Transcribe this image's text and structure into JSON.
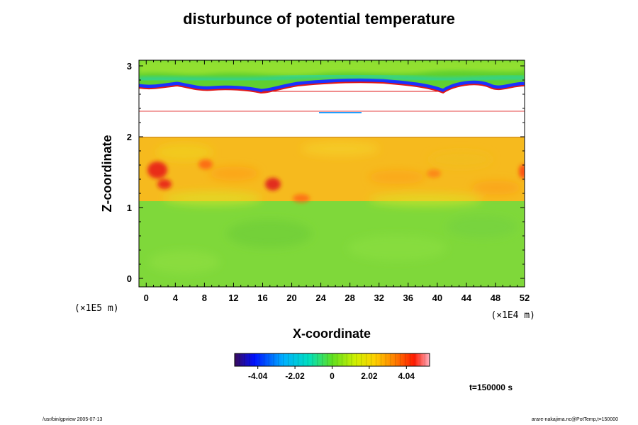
{
  "chart_data": {
    "type": "heatmap",
    "title": "disturbunce of potential temperature",
    "xlabel": "X-coordinate",
    "ylabel": "Z-coordinate",
    "x_unit": "(×1E4 m)",
    "y_unit": "(×1E5 m)",
    "x_ticks": [
      "0",
      "4",
      "8",
      "12",
      "16",
      "20",
      "24",
      "28",
      "32",
      "36",
      "40",
      "44",
      "48",
      "52"
    ],
    "y_ticks": [
      "0",
      "1",
      "2",
      "3"
    ],
    "xlim": [
      -1,
      52
    ],
    "ylim": [
      -0.12,
      3.08
    ],
    "colorbar": {
      "range": [
        -5.3,
        5.3
      ],
      "tick_labels": [
        "-4.04",
        "-2.02",
        "0",
        "2.02",
        "4.04"
      ],
      "tick_values": [
        -4.04,
        -2.02,
        0,
        2.02,
        4.04
      ]
    },
    "time_label": "t=150000 s",
    "regions": [
      {
        "z_range": [
          -0.12,
          1.12
        ],
        "level": "approx 1.0 (green)"
      },
      {
        "z_range": [
          1.12,
          2.0
        ],
        "level": "approx 3.0 (yellow-orange), peaks near 4.5 (red)"
      },
      {
        "z_range": [
          2.0,
          2.72
        ],
        "level": "undefined (white)"
      },
      {
        "z_range": [
          2.72,
          3.08
        ],
        "level": "approx 0 to 1 (green), minima near -3 (blue) at lower edge"
      }
    ]
  },
  "footer": {
    "left": "/usr/bin/gpview 2005-07-13",
    "right": "arare-nakajima.nc@PotTemp,t=150000"
  }
}
